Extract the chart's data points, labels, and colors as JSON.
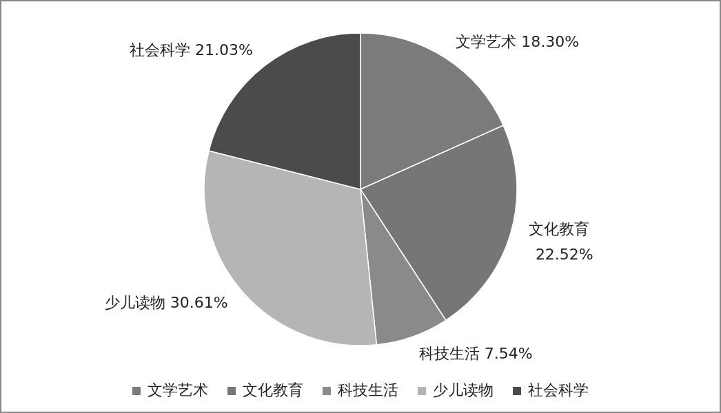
{
  "chart_data": {
    "type": "pie",
    "categories": [
      "文学艺术",
      "文化教育",
      "科技生活",
      "少儿读物",
      "社会科学"
    ],
    "values": [
      18.3,
      22.52,
      7.54,
      30.61,
      21.03
    ],
    "value_labels": [
      "18.30%",
      "22.52%",
      "7.54%",
      "30.61%",
      "21.03%"
    ],
    "colors": [
      "#7b7b7b",
      "#767676",
      "#8a8a8a",
      "#b5b5b5",
      "#4b4b4b"
    ],
    "legend": "bottom"
  }
}
